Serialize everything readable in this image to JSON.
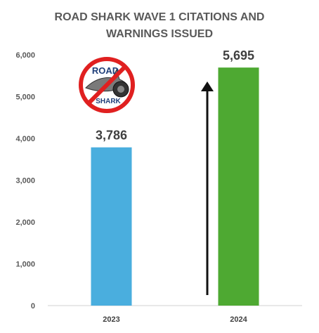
{
  "chart_data": {
    "type": "bar",
    "title_lines": [
      "ROAD SHARK WAVE 1 CITATIONS AND",
      "WARNINGS ISSUED"
    ],
    "categories": [
      "2023",
      "2024"
    ],
    "values": [
      3786,
      5695
    ],
    "value_labels": [
      "3,786",
      "5,695"
    ],
    "bar_colors": [
      "#4aaede",
      "#4ea932"
    ],
    "ylim": [
      0,
      6000
    ],
    "yticks": [
      0,
      1000,
      2000,
      3000,
      4000,
      5000,
      6000
    ],
    "ytick_labels": [
      "0",
      "1,000",
      "2,000",
      "3,000",
      "4,000",
      "5,000",
      "6,000"
    ],
    "grid": false,
    "legend": "none",
    "annotation": "upward arrow beside the 2024 bar",
    "logo": {
      "line1": "ROAD",
      "line2": "SHARK",
      "icon": "prohibited-shark-car-logo"
    }
  }
}
